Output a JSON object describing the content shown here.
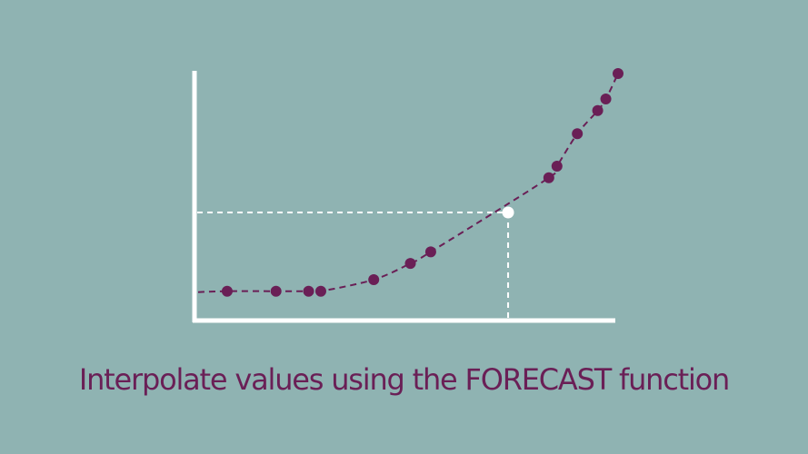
{
  "caption": "Interpolate values using the FORECAST function",
  "colors": {
    "background": "#8fb3b2",
    "axis": "#ffffff",
    "points": "#6a1f56",
    "curve": "#6a1f56",
    "guide": "#ffffff",
    "highlight": "#ffffff"
  },
  "chart_data": {
    "type": "scatter",
    "title": "",
    "xlabel": "",
    "ylabel": "",
    "grid": false,
    "x_range": [
      0,
      100
    ],
    "y_range": [
      0,
      100
    ],
    "trend_line": "dashed curve",
    "points": [
      {
        "x": 4,
        "y": 6
      },
      {
        "x": 16,
        "y": 6
      },
      {
        "x": 24,
        "y": 6
      },
      {
        "x": 27,
        "y": 6
      },
      {
        "x": 40,
        "y": 11
      },
      {
        "x": 49,
        "y": 18
      },
      {
        "x": 54,
        "y": 23
      },
      {
        "x": 83,
        "y": 55
      },
      {
        "x": 85,
        "y": 60
      },
      {
        "x": 90,
        "y": 74
      },
      {
        "x": 95,
        "y": 84
      },
      {
        "x": 97,
        "y": 89
      },
      {
        "x": 100,
        "y": 100
      }
    ],
    "interpolated_point": {
      "x": 73,
      "y": 40
    }
  }
}
